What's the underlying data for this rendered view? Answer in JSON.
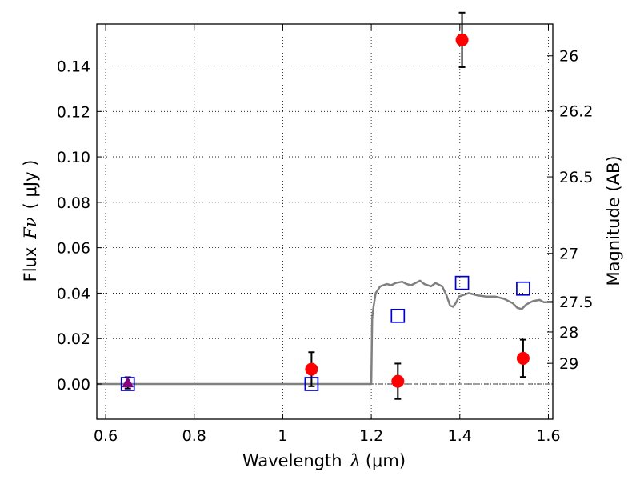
{
  "chart_data": {
    "type": "scatter",
    "title": "",
    "xlabel": "Wavelength",
    "xlabel_symbol": "λ",
    "xlabel_unit": "(μm)",
    "ylabel": "Flux",
    "ylabel_symbol": "Fν",
    "ylabel_unit": "( μJy )",
    "y2label": "Magnitude (AB)",
    "xlim": [
      0.58,
      1.61
    ],
    "ylim": [
      -0.0155,
      0.1585
    ],
    "grid": true,
    "x_ticks": [
      0.6,
      0.8,
      1.0,
      1.2,
      1.4,
      1.6
    ],
    "x_tick_labels": [
      "0.6",
      "0.8",
      "1",
      "1.2",
      "1.4",
      "1.6"
    ],
    "y_ticks": [
      0.0,
      0.02,
      0.04,
      0.06,
      0.08,
      0.1,
      0.12,
      0.14
    ],
    "y_tick_labels": [
      "0.00",
      "0.02",
      "0.04",
      "0.06",
      "0.08",
      "0.10",
      "0.12",
      "0.14"
    ],
    "y2_ticks": [
      {
        "label": "26",
        "flux": 0.1445
      },
      {
        "label": "26.2",
        "flux": 0.1202
      },
      {
        "label": "26.5",
        "flux": 0.0912
      },
      {
        "label": "27",
        "flux": 0.0575
      },
      {
        "label": "27.5",
        "flux": 0.0363
      },
      {
        "label": "28",
        "flux": 0.0229
      },
      {
        "label": "29",
        "flux": 0.0091
      }
    ],
    "series": [
      {
        "marker": "circle",
        "color": "#ff0000",
        "points": [
          {
            "x": 1.065,
            "y": 0.0065,
            "err": 0.0075
          },
          {
            "x": 1.26,
            "y": 0.0012,
            "err": 0.0078
          },
          {
            "x": 1.405,
            "y": 0.1515,
            "err": 0.012
          },
          {
            "x": 1.543,
            "y": 0.0113,
            "err": 0.0082
          }
        ]
      },
      {
        "marker": "square",
        "color": "#0000cc",
        "points": [
          {
            "x": 0.65,
            "y": 0.0
          },
          {
            "x": 1.065,
            "y": 0.0
          },
          {
            "x": 1.26,
            "y": 0.03
          },
          {
            "x": 1.405,
            "y": 0.0445
          },
          {
            "x": 1.543,
            "y": 0.042
          }
        ]
      },
      {
        "marker": "triangle",
        "color": "#800080",
        "points": [
          {
            "x": 0.65,
            "y": 0.0005,
            "err": 0.0025
          }
        ]
      },
      {
        "type": "line",
        "color": "#808080",
        "points": [
          [
            0.58,
            0.0
          ],
          [
            1.0,
            0.0
          ],
          [
            1.195,
            0.0
          ],
          [
            1.2,
            0.0
          ],
          [
            1.202,
            0.029
          ],
          [
            1.205,
            0.034
          ],
          [
            1.21,
            0.04
          ],
          [
            1.22,
            0.043
          ],
          [
            1.235,
            0.044
          ],
          [
            1.245,
            0.0435
          ],
          [
            1.255,
            0.0445
          ],
          [
            1.27,
            0.045
          ],
          [
            1.28,
            0.044
          ],
          [
            1.29,
            0.0435
          ],
          [
            1.3,
            0.0445
          ],
          [
            1.31,
            0.0455
          ],
          [
            1.32,
            0.044
          ],
          [
            1.335,
            0.043
          ],
          [
            1.345,
            0.0445
          ],
          [
            1.36,
            0.043
          ],
          [
            1.37,
            0.039
          ],
          [
            1.378,
            0.0345
          ],
          [
            1.385,
            0.034
          ],
          [
            1.392,
            0.036
          ],
          [
            1.398,
            0.0385
          ],
          [
            1.405,
            0.039
          ],
          [
            1.42,
            0.04
          ],
          [
            1.44,
            0.039
          ],
          [
            1.46,
            0.0385
          ],
          [
            1.48,
            0.0385
          ],
          [
            1.5,
            0.0375
          ],
          [
            1.52,
            0.0355
          ],
          [
            1.53,
            0.0335
          ],
          [
            1.54,
            0.033
          ],
          [
            1.55,
            0.035
          ],
          [
            1.565,
            0.0365
          ],
          [
            1.58,
            0.037
          ],
          [
            1.59,
            0.036
          ],
          [
            1.61,
            0.036
          ]
        ]
      }
    ]
  }
}
